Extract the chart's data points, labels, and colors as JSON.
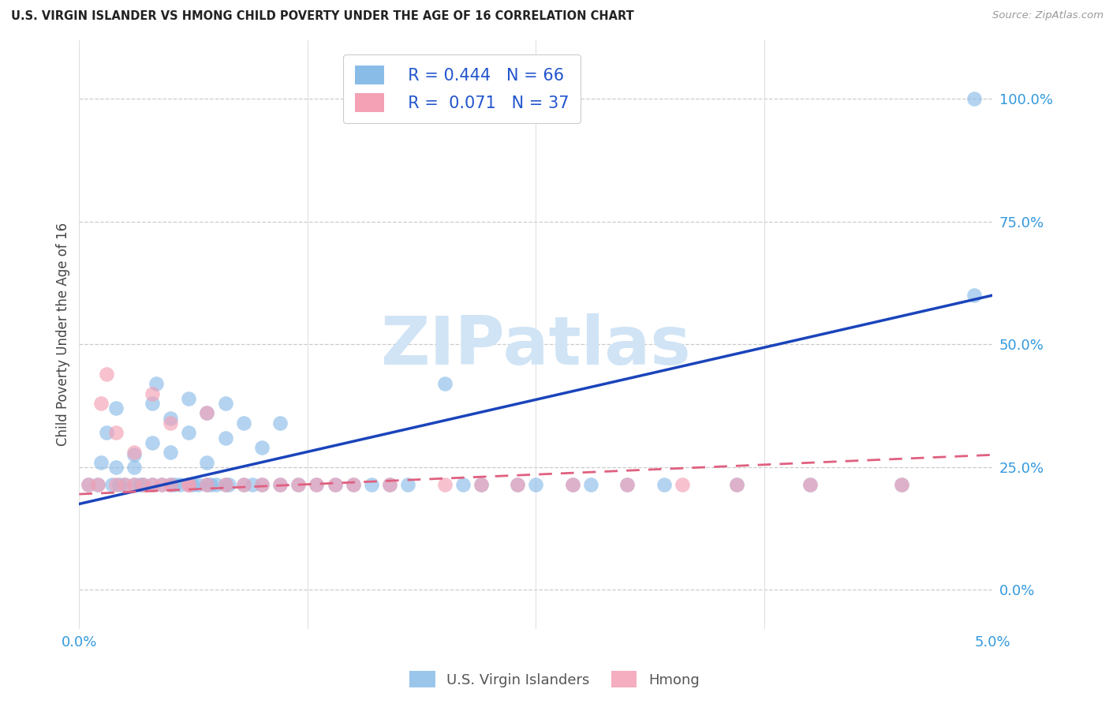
{
  "title": "U.S. VIRGIN ISLANDER VS HMONG CHILD POVERTY UNDER THE AGE OF 16 CORRELATION CHART",
  "source": "Source: ZipAtlas.com",
  "ylabel": "Child Poverty Under the Age of 16",
  "ytick_labels": [
    "0.0%",
    "25.0%",
    "50.0%",
    "75.0%",
    "100.0%"
  ],
  "ytick_values": [
    0.0,
    0.25,
    0.5,
    0.75,
    1.0
  ],
  "xlim": [
    0.0,
    0.05
  ],
  "ylim": [
    -0.08,
    1.12
  ],
  "legend_r_blue": "0.444",
  "legend_n_blue": "66",
  "legend_r_pink": "0.071",
  "legend_n_pink": "37",
  "legend_label_blue": "U.S. Virgin Islanders",
  "legend_label_pink": "Hmong",
  "blue_color": "#8abce8",
  "pink_color": "#f4a0b5",
  "trendline_blue_color": "#1a44bb",
  "trendline_pink_color": "#e06080",
  "watermark_text": "ZIPatlas",
  "watermark_color": "#d0e4f5",
  "blue_trend_x0": 0.0,
  "blue_trend_y0": 0.175,
  "blue_trend_x1": 0.05,
  "blue_trend_y1": 0.6,
  "pink_trend_x0": 0.0,
  "pink_trend_y0": 0.195,
  "pink_trend_x1": 0.05,
  "pink_trend_y1": 0.275,
  "blue_scatter_x": [
    0.0005,
    0.001,
    0.0012,
    0.0015,
    0.0018,
    0.002,
    0.002,
    0.0022,
    0.0025,
    0.003,
    0.003,
    0.003,
    0.0033,
    0.0035,
    0.004,
    0.004,
    0.004,
    0.0042,
    0.0045,
    0.005,
    0.005,
    0.005,
    0.0052,
    0.0055,
    0.006,
    0.006,
    0.006,
    0.0062,
    0.0065,
    0.007,
    0.007,
    0.007,
    0.0072,
    0.0075,
    0.008,
    0.008,
    0.008,
    0.0082,
    0.009,
    0.009,
    0.0095,
    0.01,
    0.01,
    0.011,
    0.011,
    0.012,
    0.013,
    0.014,
    0.015,
    0.016,
    0.017,
    0.018,
    0.02,
    0.021,
    0.022,
    0.024,
    0.025,
    0.027,
    0.028,
    0.03,
    0.032,
    0.036,
    0.04,
    0.045,
    0.049,
    0.049
  ],
  "blue_scatter_y": [
    0.215,
    0.215,
    0.26,
    0.32,
    0.215,
    0.25,
    0.37,
    0.215,
    0.215,
    0.275,
    0.25,
    0.215,
    0.215,
    0.215,
    0.3,
    0.38,
    0.215,
    0.42,
    0.215,
    0.35,
    0.215,
    0.28,
    0.215,
    0.215,
    0.32,
    0.39,
    0.215,
    0.215,
    0.215,
    0.36,
    0.215,
    0.26,
    0.215,
    0.215,
    0.38,
    0.31,
    0.215,
    0.215,
    0.215,
    0.34,
    0.215,
    0.215,
    0.29,
    0.215,
    0.34,
    0.215,
    0.215,
    0.215,
    0.215,
    0.215,
    0.215,
    0.215,
    0.42,
    0.215,
    0.215,
    0.215,
    0.215,
    0.215,
    0.215,
    0.215,
    0.215,
    0.215,
    0.215,
    0.215,
    1.0,
    0.6
  ],
  "pink_scatter_x": [
    0.0005,
    0.001,
    0.0012,
    0.0015,
    0.002,
    0.002,
    0.0025,
    0.003,
    0.003,
    0.0035,
    0.004,
    0.004,
    0.0045,
    0.005,
    0.005,
    0.006,
    0.006,
    0.007,
    0.007,
    0.008,
    0.009,
    0.01,
    0.011,
    0.012,
    0.013,
    0.014,
    0.015,
    0.017,
    0.02,
    0.022,
    0.024,
    0.027,
    0.03,
    0.033,
    0.036,
    0.04,
    0.045
  ],
  "pink_scatter_y": [
    0.215,
    0.215,
    0.38,
    0.44,
    0.215,
    0.32,
    0.215,
    0.215,
    0.28,
    0.215,
    0.215,
    0.4,
    0.215,
    0.215,
    0.34,
    0.215,
    0.215,
    0.215,
    0.36,
    0.215,
    0.215,
    0.215,
    0.215,
    0.215,
    0.215,
    0.215,
    0.215,
    0.215,
    0.215,
    0.215,
    0.215,
    0.215,
    0.215,
    0.215,
    0.215,
    0.215,
    0.215
  ]
}
